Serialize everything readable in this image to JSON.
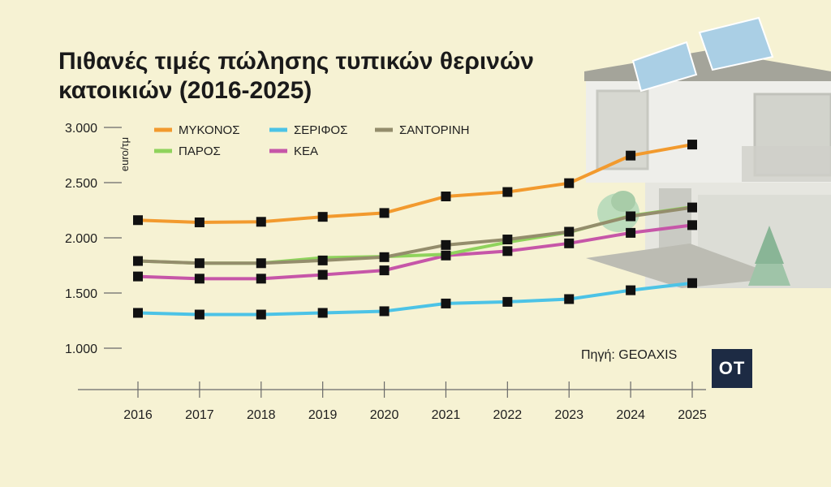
{
  "title": "Πιθανές τιμές πώλησης τυπικών θερινών κατοικιών (2016-2025)",
  "source": "Πηγή: GEOAXIS",
  "logo": "OT",
  "colors": {
    "background": "#f6f2d3",
    "logo_bg": "#1d2b44",
    "marker": "#111111"
  },
  "chart_data": {
    "type": "line",
    "title": "Πιθανές τιμές πώλησης τυπικών θερινών κατοικιών (2016-2025)",
    "xlabel": "",
    "ylabel": "euro/τμ",
    "x": [
      "2016",
      "2017",
      "2018",
      "2019",
      "2020",
      "2021",
      "2022",
      "2023",
      "2024",
      "2025"
    ],
    "ylim": [
      1000,
      3000
    ],
    "y_ticks": [
      "1.000",
      "1.500",
      "2.000",
      "2.500",
      "3.000"
    ],
    "y_tick_values": [
      1000,
      1500,
      2000,
      2500,
      3000
    ],
    "grid": false,
    "legend_position": "top",
    "series": [
      {
        "name": "ΜΥΚΟΝΟΣ",
        "color": "#f29a2e",
        "values": [
          2160,
          2140,
          2145,
          2190,
          2225,
          2375,
          2415,
          2495,
          2745,
          2845
        ]
      },
      {
        "name": "ΠΑΡΟΣ",
        "color": "#8fd35c",
        "values": [
          1790,
          1770,
          1770,
          1820,
          1830,
          1850,
          1960,
          2050,
          2200,
          2280
        ]
      },
      {
        "name": "ΣΕΡΙΦΟΣ",
        "color": "#4cc3e6",
        "values": [
          1320,
          1305,
          1305,
          1320,
          1335,
          1405,
          1420,
          1445,
          1525,
          1590
        ]
      },
      {
        "name": "ΚΕΑ",
        "color": "#c656a8",
        "values": [
          1650,
          1630,
          1630,
          1665,
          1705,
          1840,
          1880,
          1950,
          2045,
          2115
        ]
      },
      {
        "name": "ΣΑΝΤΟΡΙΝΗ",
        "color": "#948d6c",
        "values": [
          1790,
          1770,
          1770,
          1795,
          1825,
          1935,
          1985,
          2055,
          2195,
          2275
        ]
      }
    ]
  }
}
